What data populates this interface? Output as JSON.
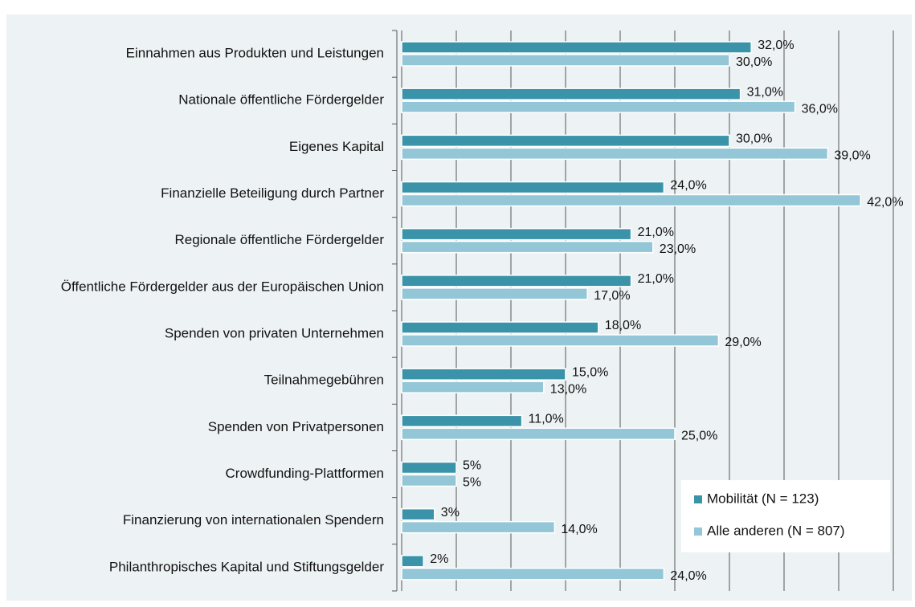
{
  "chart_data": {
    "type": "barh",
    "categories": [
      "Einnahmen aus Produkten und Leistungen",
      "Nationale öffentliche Fördergelder",
      "Eigenes Kapital",
      "Finanzielle Beteiligung durch Partner",
      "Regionale öffentliche Fördergelder",
      "Öffentliche Fördergelder aus der Europäischen Union",
      "Spenden von privaten Unternehmen",
      "Teilnahmegebühren",
      "Spenden von Privatpersonen",
      "Crowdfunding-Plattformen",
      "Finanzierung von internationalen Spendern",
      "Philanthropisches Kapital und Stiftungsgelder"
    ],
    "series": [
      {
        "name": "Mobilität (N = 123)",
        "color": "#3a93a8",
        "values": [
          32,
          31,
          30,
          24,
          21,
          21,
          18,
          15,
          11,
          5,
          3,
          2
        ],
        "value_labels": [
          "32,0%",
          "31,0%",
          "30,0%",
          "24,0%",
          "21,0%",
          "21,0%",
          "18,0%",
          "15,0%",
          "11,0%",
          "5%",
          "3%",
          "2%"
        ]
      },
      {
        "name": "Alle anderen (N = 807)",
        "color": "#93c6d6",
        "values": [
          30,
          36,
          39,
          42,
          23,
          17,
          29,
          13,
          25,
          5,
          14,
          24
        ],
        "value_labels": [
          "30,0%",
          "36,0%",
          "39,0%",
          "42,0%",
          "23,0%",
          "17,0%",
          "29,0%",
          "13,0%",
          "25,0%",
          "5%",
          "14,0%",
          "24,0%"
        ]
      }
    ],
    "xlim": [
      0,
      45
    ],
    "xticks": [
      0,
      5,
      10,
      15,
      20,
      25,
      30,
      35,
      40,
      45
    ],
    "grid": true,
    "legend": "lower right"
  }
}
